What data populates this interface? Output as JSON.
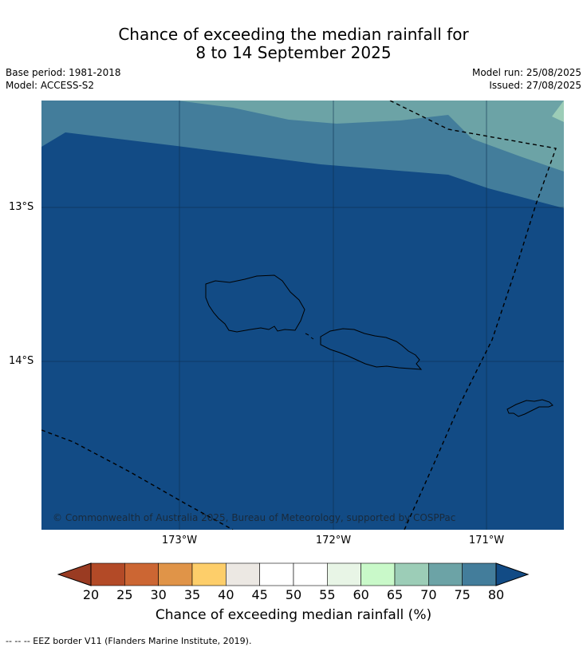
{
  "title": {
    "line1": "Chance of exceeding the median rainfall for",
    "line2": "8 to 14 September 2025"
  },
  "meta": {
    "base_period": "Base period: 1981-2018",
    "model": "Model: ACCESS-S2",
    "model_run": "Model run: 25/08/2025",
    "issued": "Issued: 27/08/2025"
  },
  "map": {
    "lat_labels": [
      "13°S",
      "14°S"
    ],
    "lon_labels": [
      "173°W",
      "172°W",
      "171°W"
    ],
    "copyright": "© Commonwealth of Australia 2025, Bureau of Meteorology, supported by COSPPac",
    "islands": [
      "Savai'i",
      "Upolu",
      "Tutuila"
    ]
  },
  "colorbar": {
    "label": "Chance of exceeding median rainfall (%)",
    "ticks": [
      "20",
      "25",
      "30",
      "35",
      "40",
      "45",
      "50",
      "55",
      "60",
      "65",
      "70",
      "75",
      "80"
    ],
    "colors": [
      "#b34a27",
      "#cc6633",
      "#e09448",
      "#fdce6a",
      "#ece8e3",
      "#ffffff",
      "#ffffff",
      "#e8f5e6",
      "#c9f9c9",
      "#9ccdb7",
      "#6ca3a6",
      "#437d9b"
    ],
    "under_color": "#9a3b22",
    "over_color": "#124b85"
  },
  "footer": "--  --  -- EEZ border V11 (Flanders Marine Institute, 2019)."
}
